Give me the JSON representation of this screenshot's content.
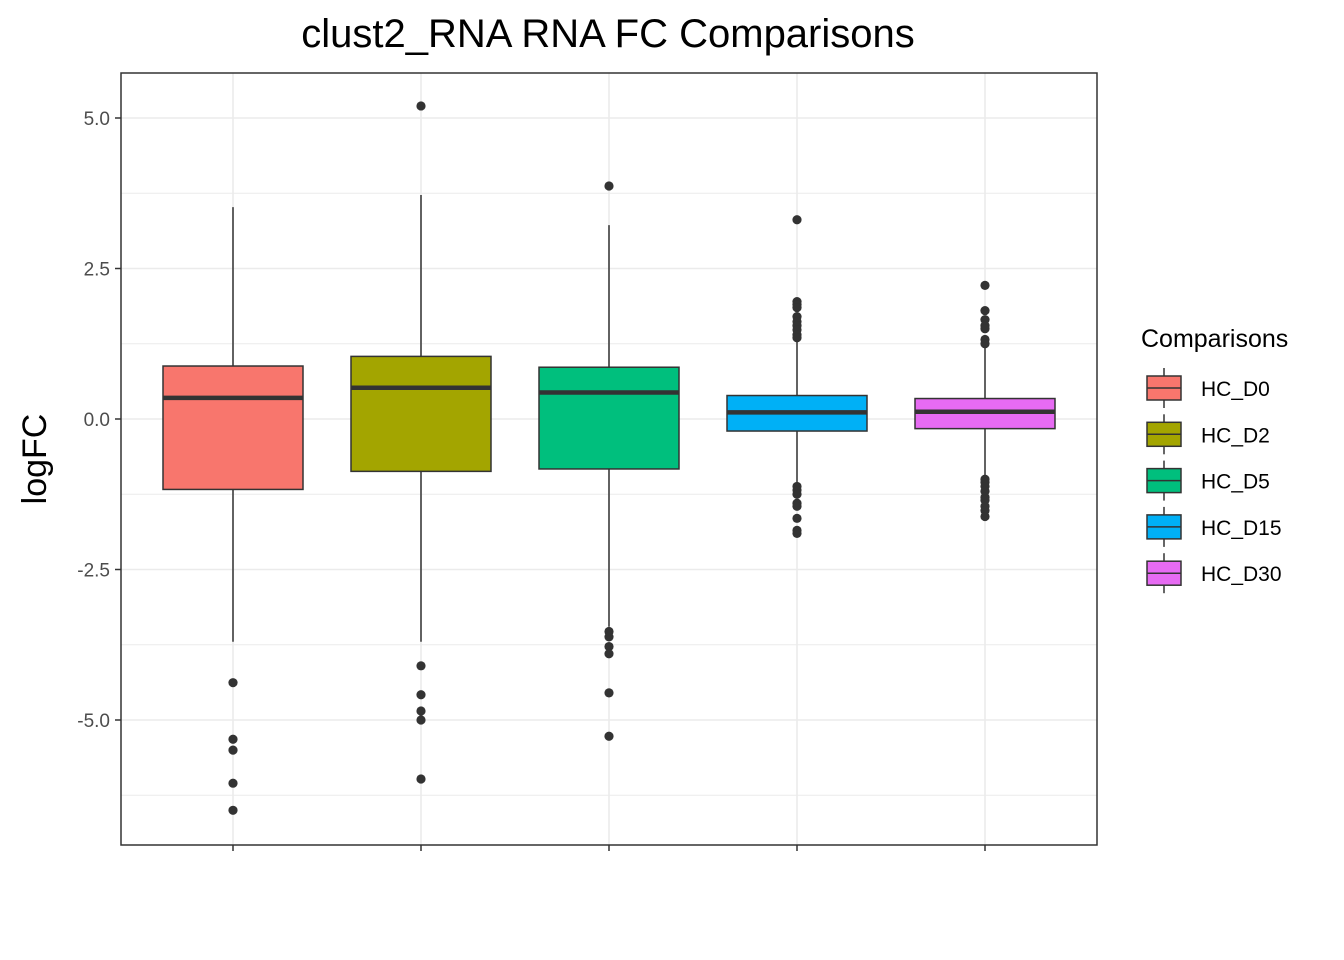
{
  "chart_data": {
    "type": "boxplot",
    "title": "clust2_RNA RNA FC Comparisons",
    "xlabel": "",
    "ylabel": "logFC",
    "ylim": [
      -7.1,
      5.75
    ],
    "yticks": [
      -5.0,
      -2.5,
      0.0,
      2.5,
      5.0
    ],
    "ytick_labels": [
      "-5.0",
      "-2.5",
      "0.0",
      "2.5",
      "5.0"
    ],
    "grid": true,
    "legend": {
      "title": "Comparisons",
      "position": "right"
    },
    "categories": [
      "HC_D0",
      "HC_D2",
      "HC_D5",
      "HC_D15",
      "HC_D30"
    ],
    "colors": [
      "#F8766D",
      "#A3A500",
      "#00BF7D",
      "#00B0F6",
      "#E76BF3"
    ],
    "boxes": [
      {
        "name": "HC_D0",
        "whisker_low": -3.7,
        "q1": -1.17,
        "median": 0.35,
        "q3": 0.88,
        "whisker_high": 3.52,
        "outliers": [
          -4.38,
          -5.32,
          -5.5,
          -6.05,
          -6.5
        ]
      },
      {
        "name": "HC_D2",
        "whisker_low": -3.7,
        "q1": -0.87,
        "median": 0.52,
        "q3": 1.04,
        "whisker_high": 3.72,
        "outliers": [
          5.2,
          -4.1,
          -4.58,
          -4.85,
          -5.0,
          -5.98
        ]
      },
      {
        "name": "HC_D5",
        "whisker_low": -3.45,
        "q1": -0.83,
        "median": 0.44,
        "q3": 0.86,
        "whisker_high": 3.22,
        "outliers": [
          3.87,
          -3.53,
          -3.62,
          -3.78,
          -3.9,
          -4.55,
          -5.27
        ]
      },
      {
        "name": "HC_D15",
        "whisker_low": -1.07,
        "q1": -0.2,
        "median": 0.11,
        "q3": 0.39,
        "whisker_high": 1.28,
        "outliers": [
          3.31,
          1.95,
          1.9,
          1.85,
          1.7,
          1.62,
          1.55,
          1.48,
          1.4,
          1.35,
          -1.12,
          -1.18,
          -1.25,
          -1.4,
          -1.45,
          -1.65,
          -1.85,
          -1.9
        ]
      },
      {
        "name": "HC_D30",
        "whisker_low": -0.95,
        "q1": -0.16,
        "median": 0.12,
        "q3": 0.34,
        "whisker_high": 1.18,
        "outliers": [
          2.22,
          1.8,
          1.65,
          1.55,
          1.5,
          1.32,
          1.25,
          -1.0,
          -1.05,
          -1.12,
          -1.2,
          -1.3,
          -1.35,
          -1.45,
          -1.52,
          -1.62
        ]
      }
    ]
  }
}
